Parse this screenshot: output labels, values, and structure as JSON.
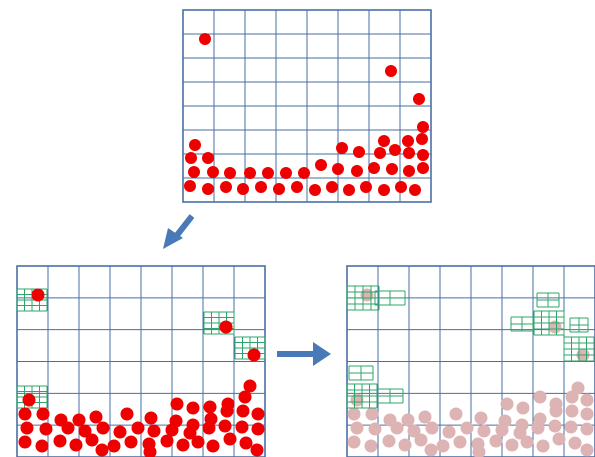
{
  "colors": {
    "grid": "#4a6fa5",
    "particle": "#ee0000",
    "particle_faded": "#ddb3b3",
    "refined_grid": "#2ea56a",
    "refined_particle": "#7a3a20",
    "arrow": "#4a79b8"
  },
  "arrows": {
    "down_left": "arrow-down-left-icon",
    "right": "arrow-right-icon"
  }
}
